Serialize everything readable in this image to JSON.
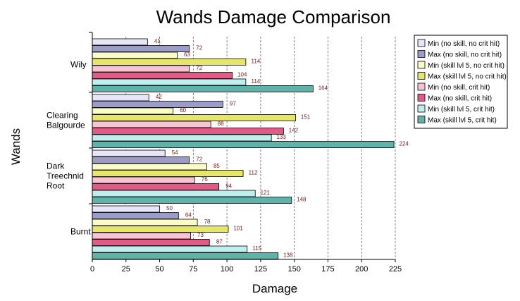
{
  "chart_data": {
    "type": "bar",
    "orientation": "horizontal",
    "title": "Wands Damage Comparison",
    "xlabel": "Damage",
    "ylabel": "Wands",
    "xlim": [
      0,
      225
    ],
    "xticks": [
      0,
      25,
      50,
      75,
      100,
      125,
      150,
      175,
      200,
      225
    ],
    "grid": "vertical-dashed",
    "legend_position": "right",
    "categories": [
      {
        "lines": [
          "Wily"
        ]
      },
      {
        "lines": [
          "Clearing",
          "Balgourde"
        ]
      },
      {
        "lines": [
          "Dark",
          "Treechnid",
          "Root"
        ]
      },
      {
        "lines": [
          "Burnt"
        ]
      }
    ],
    "series": [
      {
        "name": "Min (no skill, no crit hit)",
        "color": "#e6e6f8",
        "values": [
          41,
          42,
          54,
          50
        ]
      },
      {
        "name": "Max (no skill, no crit hit)",
        "color": "#9c9cc8",
        "values": [
          72,
          97,
          72,
          64
        ]
      },
      {
        "name": "Min (skill lvl 5, no crit hit)",
        "color": "#fbfbc8",
        "values": [
          63,
          60,
          85,
          78
        ]
      },
      {
        "name": "Max (skill lvl 5, no crit hit)",
        "color": "#e6e66a",
        "values": [
          114,
          151,
          112,
          101
        ]
      },
      {
        "name": "Min (no skill, crit hit)",
        "color": "#f8c4d4",
        "values": [
          72,
          88,
          76,
          73
        ]
      },
      {
        "name": "Max (no skill, crit hit)",
        "color": "#e25a86",
        "values": [
          104,
          142,
          94,
          87
        ]
      },
      {
        "name": "Min (skill lvl 5, crit hit)",
        "color": "#bfeeee",
        "values": [
          114,
          133,
          121,
          115
        ]
      },
      {
        "name": "Max (skill lvl 5, crit hit)",
        "color": "#5fb3aa",
        "values": [
          164,
          224,
          148,
          138
        ]
      }
    ]
  }
}
